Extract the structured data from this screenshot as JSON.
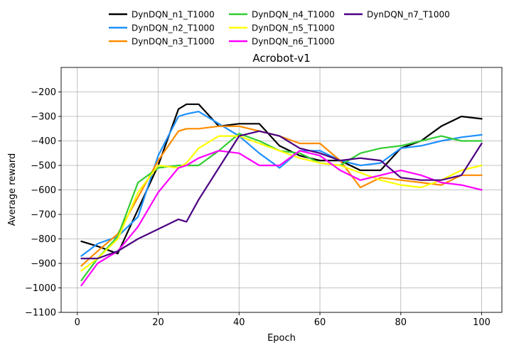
{
  "chart_data": {
    "type": "line",
    "title": "Acrobot-v1",
    "xlabel": "Epoch",
    "ylabel": "Average reward",
    "xlim": [
      -4,
      105
    ],
    "ylim": [
      -1100,
      -100
    ],
    "xticks": [
      0,
      20,
      40,
      60,
      80,
      100
    ],
    "yticks": [
      -1100,
      -1000,
      -900,
      -800,
      -700,
      -600,
      -500,
      -400,
      -300,
      -200
    ],
    "grid": true,
    "legend_position": "top-center",
    "x": [
      1,
      5,
      10,
      15,
      20,
      25,
      27,
      30,
      35,
      40,
      45,
      50,
      55,
      60,
      65,
      70,
      75,
      80,
      85,
      90,
      95,
      100
    ],
    "series": [
      {
        "name": "DynDQN_n1_T1000",
        "color": "#000000",
        "values": [
          -810,
          -830,
          -860,
          -680,
          -500,
          -270,
          -250,
          -250,
          -340,
          -330,
          -330,
          -420,
          -460,
          -480,
          -480,
          -520,
          -520,
          -430,
          -400,
          -340,
          -300,
          -310
        ]
      },
      {
        "name": "DynDQN_n2_T1000",
        "color": "#1e90ff",
        "values": [
          -870,
          -820,
          -790,
          -710,
          -460,
          -300,
          -290,
          -280,
          -330,
          -380,
          -450,
          -510,
          -440,
          -440,
          -480,
          -500,
          -490,
          -430,
          -420,
          -400,
          -385,
          -375
        ]
      },
      {
        "name": "DynDQN_n3_T1000",
        "color": "#ff8c00",
        "values": [
          -910,
          -850,
          -780,
          -630,
          -480,
          -360,
          -350,
          -350,
          -340,
          -340,
          -360,
          -380,
          -410,
          -410,
          -480,
          -590,
          -550,
          -560,
          -570,
          -580,
          -540,
          -540
        ]
      },
      {
        "name": "DynDQN_n4_T1000",
        "color": "#32cd32",
        "values": [
          -970,
          -880,
          -790,
          -570,
          -510,
          -500,
          -500,
          -500,
          -440,
          -370,
          -400,
          -440,
          -450,
          -490,
          -500,
          -450,
          -430,
          -420,
          -400,
          -380,
          -400,
          -400
        ]
      },
      {
        "name": "DynDQN_n5_T1000",
        "color": "#ffff00",
        "values": [
          -930,
          -880,
          -800,
          -610,
          -500,
          -510,
          -490,
          -430,
          -380,
          -380,
          -410,
          -440,
          -470,
          -490,
          -500,
          -530,
          -560,
          -580,
          -590,
          -560,
          -520,
          -500
        ]
      },
      {
        "name": "DynDQN_n6_T1000",
        "color": "#ff00ff",
        "values": [
          -990,
          -900,
          -850,
          -750,
          -610,
          -510,
          -500,
          -470,
          -440,
          -450,
          -500,
          -500,
          -440,
          -460,
          -520,
          -560,
          -540,
          -520,
          -540,
          -570,
          -580,
          -600
        ]
      },
      {
        "name": "DynDQN_n7_T1000",
        "color": "#4b0082",
        "values": [
          -880,
          -880,
          -850,
          -800,
          -760,
          -720,
          -730,
          -640,
          -510,
          -380,
          -360,
          -380,
          -430,
          -450,
          -480,
          -470,
          -480,
          -550,
          -560,
          -560,
          -540,
          -410
        ]
      }
    ]
  }
}
